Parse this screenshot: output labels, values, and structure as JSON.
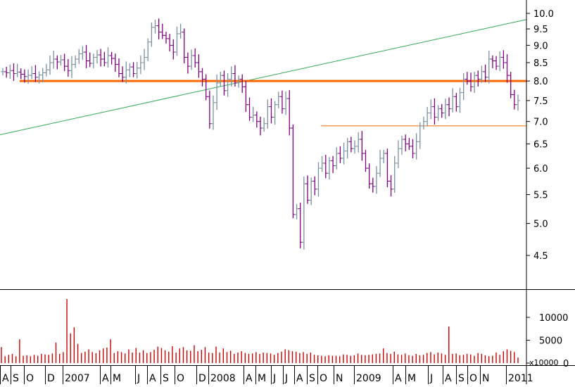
{
  "chart_data": [
    {
      "type": "ohlc",
      "scale": "log",
      "ylim": [
        4.2,
        10.3
      ],
      "y_ticks": [
        "10.0",
        "9.5",
        "9.0",
        "8.5",
        "8.0",
        "7.5",
        "7.0",
        "6.5",
        "6.0",
        "5.5",
        "5.0",
        "4.5"
      ],
      "x_ticks": [
        "A",
        "S",
        "O",
        "D",
        "2007",
        "A",
        "M",
        "J",
        "A",
        "S",
        "O",
        "D",
        "2008",
        "A",
        "M",
        "J",
        "J",
        "A",
        "S",
        "O",
        "N",
        "2009",
        "A",
        "M",
        "J",
        "A",
        "S",
        "O",
        "N",
        "2011"
      ],
      "series_close_weekly": [
        8.25,
        8.22,
        8.28,
        8.2,
        8.24,
        8.18,
        8.12,
        8.15,
        8.2,
        8.1,
        8.16,
        8.22,
        8.3,
        8.5,
        8.6,
        8.52,
        8.58,
        8.4,
        8.28,
        8.45,
        8.6,
        8.75,
        8.8,
        8.55,
        8.48,
        8.65,
        8.72,
        8.6,
        8.5,
        8.7,
        8.62,
        8.45,
        8.2,
        8.1,
        8.3,
        8.38,
        8.2,
        8.35,
        8.5,
        8.65,
        9.1,
        9.55,
        9.6,
        9.4,
        9.3,
        9.2,
        9.0,
        8.8,
        9.35,
        9.4,
        8.65,
        8.4,
        8.7,
        8.5,
        8.25,
        8.05,
        7.6,
        6.95,
        7.45,
        7.95,
        8.15,
        7.75,
        8.05,
        8.2,
        7.95,
        8.05,
        7.85,
        7.4,
        7.1,
        7.15,
        7.0,
        6.85,
        6.95,
        7.35,
        7.1,
        7.4,
        7.6,
        7.3,
        7.55,
        6.85,
        5.15,
        5.25,
        4.7,
        5.7,
        5.4,
        5.75,
        5.6,
        6.0,
        6.1,
        5.9,
        6.15,
        6.05,
        6.3,
        6.2,
        6.35,
        6.55,
        6.4,
        6.45,
        6.6,
        6.3,
        6.0,
        5.7,
        5.65,
        5.9,
        6.2,
        6.3,
        5.75,
        5.6,
        6.1,
        6.4,
        6.6,
        6.5,
        6.45,
        6.3,
        6.55,
        6.9,
        7.0,
        7.2,
        7.35,
        7.1,
        7.3,
        7.2,
        7.4,
        7.3,
        7.6,
        7.35,
        7.7,
        8.05,
        8.0,
        7.85,
        8.15,
        8.05,
        8.25,
        8.1,
        8.6,
        8.55,
        8.4,
        8.65,
        8.5,
        8.15,
        7.65,
        7.4,
        7.5
      ],
      "horizontal_lines": [
        {
          "value": 8.0,
          "color": "#ff6600",
          "style": "thick"
        },
        {
          "value": 6.9,
          "color": "#ff6600",
          "style": "thin"
        }
      ],
      "trend_line": {
        "from": [
          0,
          6.7
        ],
        "to": [
          135,
          9.8
        ],
        "color": "#33aa55"
      },
      "colors": {
        "up": "#7a90a0",
        "down": "#800080"
      }
    },
    {
      "type": "bar",
      "title": "",
      "unit_label": "x10000",
      "ylim": [
        0,
        14000
      ],
      "y_ticks": [
        "10000",
        "5000",
        "0"
      ],
      "values_weekly": [
        3500,
        1500,
        1800,
        2000,
        1500,
        5200,
        1600,
        1700,
        1500,
        1800,
        1600,
        2000,
        1900,
        1800,
        2100,
        4500,
        2000,
        2400,
        14000,
        6500,
        7800,
        4200,
        2200,
        2500,
        3000,
        2400,
        2200,
        2800,
        3200,
        3400,
        5200,
        2200,
        2600,
        2400,
        2100,
        3000,
        2300,
        3300,
        2300,
        2800,
        2200,
        2400,
        2900,
        3600,
        3300,
        2800,
        2500,
        3700,
        2300,
        3200,
        3500,
        2800,
        2700,
        3900,
        2600,
        2900,
        3500,
        2300,
        2200,
        3600,
        2300,
        3200,
        2400,
        2700,
        2000,
        2300,
        2600,
        2200,
        2000,
        2100,
        2400,
        2000,
        2300,
        2200,
        2100,
        1800,
        2200,
        2500,
        3000,
        2800,
        2600,
        2500,
        2200,
        2400,
        2000,
        2300,
        1800,
        1700,
        1600,
        1500,
        1700,
        1600,
        1600,
        1500,
        1900,
        1800,
        1600,
        1700,
        2100,
        1800,
        1700,
        1800,
        1900,
        2000,
        2100,
        3200,
        2200,
        2000,
        2500,
        1900,
        1800,
        2100,
        1700,
        1600,
        2000,
        1700,
        1800,
        2200,
        2400,
        1900,
        2300,
        2100,
        1800,
        8000,
        2000,
        2100,
        1700,
        1800,
        2000,
        1900,
        1600,
        2200,
        2000,
        1700,
        1500,
        1600,
        2300,
        1800,
        2600,
        3000,
        2700,
        2400,
        1200
      ],
      "bar_color": "#cc0000"
    }
  ]
}
